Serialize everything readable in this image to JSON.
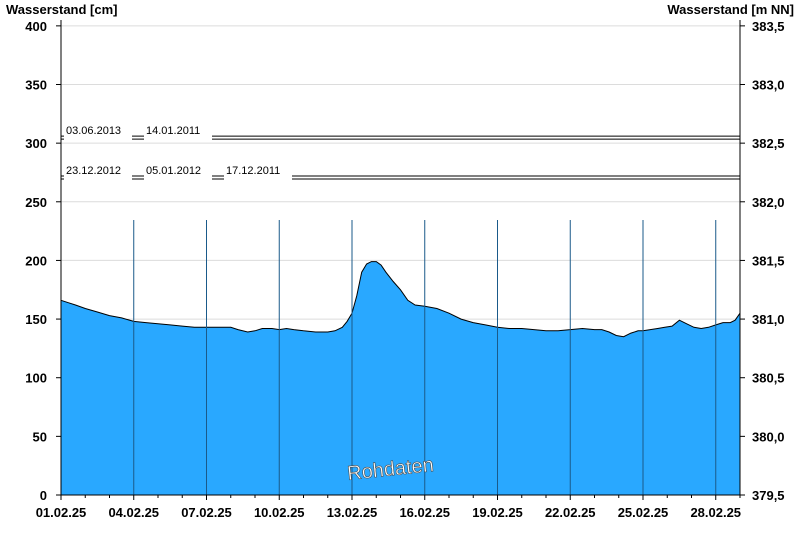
{
  "chart_data": {
    "type": "area",
    "ylabel_left": "Wasserstand [cm]",
    "ylabel_right": "Wasserstand [m NN]",
    "ylim_left": [
      0,
      405
    ],
    "yticks_left": [
      "0",
      "50",
      "100",
      "150",
      "200",
      "250",
      "300",
      "350",
      "400"
    ],
    "ylim_right": [
      379.5,
      383.55
    ],
    "yticks_right": [
      "379,5",
      "380,0",
      "380,5",
      "381,0",
      "381,5",
      "382,0",
      "382,5",
      "383,0",
      "383,5"
    ],
    "xlim_days": [
      0,
      28
    ],
    "xticks": [
      "01.02.25",
      "04.02.25",
      "07.02.25",
      "10.02.25",
      "13.02.25",
      "16.02.25",
      "19.02.25",
      "22.02.25",
      "25.02.25",
      "28.02.25"
    ],
    "grid": true,
    "fill_color": "#29a8ff",
    "series": [
      {
        "x": [
          0,
          0.3,
          0.6,
          1.0,
          1.5,
          2.0,
          2.5,
          3.0,
          3.5,
          4.0,
          4.5,
          5.0,
          5.5,
          6.0,
          6.5,
          7.0,
          7.3,
          7.7,
          8.0,
          8.3,
          8.7,
          9.0,
          9.3,
          9.6,
          10.0,
          10.5,
          11.0,
          11.3,
          11.6,
          11.8,
          12.0,
          12.2,
          12.4,
          12.6,
          12.8,
          13.0,
          13.2,
          13.4,
          13.7,
          14.0,
          14.3,
          14.6,
          15.0,
          15.5,
          16.0,
          16.5,
          17.0,
          17.5,
          18.0,
          18.5,
          19.0,
          19.5,
          20.0,
          20.5,
          21.0,
          21.5,
          22.0,
          22.3,
          22.6,
          22.9,
          23.2,
          23.5,
          23.8,
          24.0,
          24.3,
          24.6,
          24.9,
          25.2,
          25.5,
          25.8,
          26.1,
          26.4,
          26.7,
          27.0,
          27.3,
          27.6,
          27.8,
          28.0
        ],
        "y": [
          166,
          164,
          162,
          159,
          156,
          153,
          151,
          148,
          147,
          146,
          145,
          144,
          143,
          143,
          143,
          143,
          141,
          139,
          140,
          142,
          142,
          141,
          142,
          141,
          140,
          139,
          139,
          140,
          143,
          148,
          155,
          170,
          190,
          197,
          199,
          199,
          196,
          190,
          182,
          175,
          166,
          162,
          161,
          159,
          155,
          150,
          147,
          145,
          143,
          142,
          142,
          141,
          140,
          140,
          141,
          142,
          141,
          141,
          139,
          136,
          135,
          138,
          140,
          140,
          141,
          142,
          143,
          144,
          149,
          146,
          143,
          142,
          143,
          145,
          147,
          147,
          149,
          155
        ]
      }
    ],
    "flood_marks": [
      {
        "value": 306,
        "labels": [
          "03.06.2013",
          "14.01.2011"
        ]
      },
      {
        "value": 272,
        "labels": [
          "23.12.2012",
          "05.01.2012",
          "17.12.2011"
        ]
      }
    ],
    "watermark": "Rohdaten"
  }
}
